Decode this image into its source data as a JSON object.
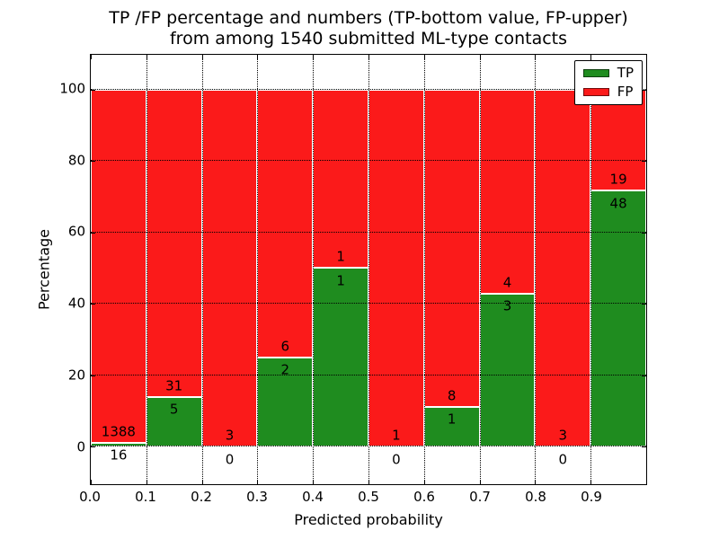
{
  "chart_data": {
    "type": "bar",
    "stacked": true,
    "title_line1": "TP /FP percentage and numbers (TP-bottom value, FP-upper)",
    "title_line2": "from among 1540 submitted ML-type contacts",
    "xlabel": "Predicted probability",
    "ylabel": "Percentage",
    "total_submitted": 1540,
    "xlim": [
      0.0,
      1.0
    ],
    "ylim": [
      -10.5,
      109.7
    ],
    "bin_width": 0.1,
    "x_tick_labels": [
      "0.0",
      "0.1",
      "0.2",
      "0.3",
      "0.4",
      "0.5",
      "0.6",
      "0.7",
      "0.8",
      "0.9"
    ],
    "y_tick_values": [
      0,
      20,
      40,
      60,
      80,
      100
    ],
    "grid": "dotted",
    "legend_position": "upper right",
    "series": [
      {
        "name": "TP",
        "color": "#1f8c1f",
        "counts": [
          16,
          5,
          0,
          2,
          1,
          0,
          1,
          3,
          0,
          48
        ]
      },
      {
        "name": "FP",
        "color": "#fb1a1a",
        "counts": [
          1388,
          31,
          3,
          6,
          1,
          1,
          8,
          4,
          3,
          19
        ]
      }
    ],
    "tp_percent": [
      1.1,
      13.9,
      0.0,
      25.0,
      50.0,
      0.0,
      11.1,
      42.9,
      0.0,
      71.6
    ]
  }
}
